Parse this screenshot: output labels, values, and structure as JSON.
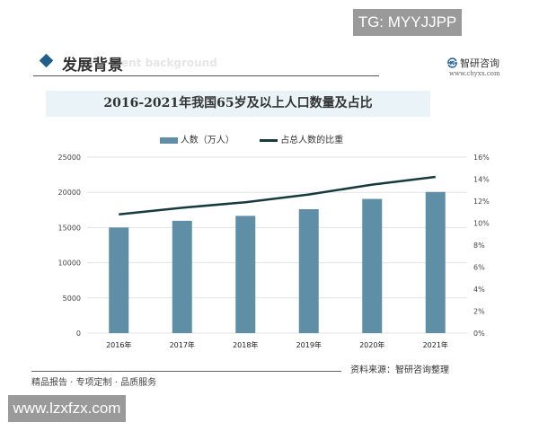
{
  "badge_tg": "TG: MYYJJPP",
  "badge_site": "www.lzxfzx.com",
  "header": {
    "title": "发展背景",
    "subtitle": "ent background",
    "logo": "智研咨询",
    "logo_url": "www.chyxx.com"
  },
  "footer": {
    "slogan": "精品报告 · 专项定制 · 品质服务",
    "source": "资料来源：智研咨询整理"
  },
  "colors": {
    "bar": "#5e8fa6",
    "line": "#173a40",
    "band": "#eaf4f8",
    "accent": "#1f5f8b"
  },
  "chart_data": {
    "type": "bar+line",
    "title": "2016-2021年我国65岁及以上人口数量及占比",
    "categories": [
      "2016年",
      "2017年",
      "2018年",
      "2019年",
      "2020年",
      "2021年"
    ],
    "series": [
      {
        "name": "人数（万人）",
        "type": "bar",
        "axis": "left",
        "values": [
          15003,
          15961,
          16658,
          17603,
          19064,
          20056
        ]
      },
      {
        "name": "占总人数的比重",
        "type": "line",
        "axis": "right",
        "values": [
          10.8,
          11.4,
          11.9,
          12.6,
          13.5,
          14.2
        ]
      }
    ],
    "left_axis": {
      "ylim": [
        0,
        25000
      ],
      "ticks": [
        "0",
        "5000",
        "10000",
        "15000",
        "20000",
        "25000"
      ]
    },
    "right_axis": {
      "ylim": [
        0,
        16
      ],
      "ticks": [
        "0%",
        "2%",
        "4%",
        "6%",
        "8%",
        "10%",
        "12%",
        "14%",
        "16%"
      ]
    },
    "grid": true,
    "legend": "top"
  }
}
